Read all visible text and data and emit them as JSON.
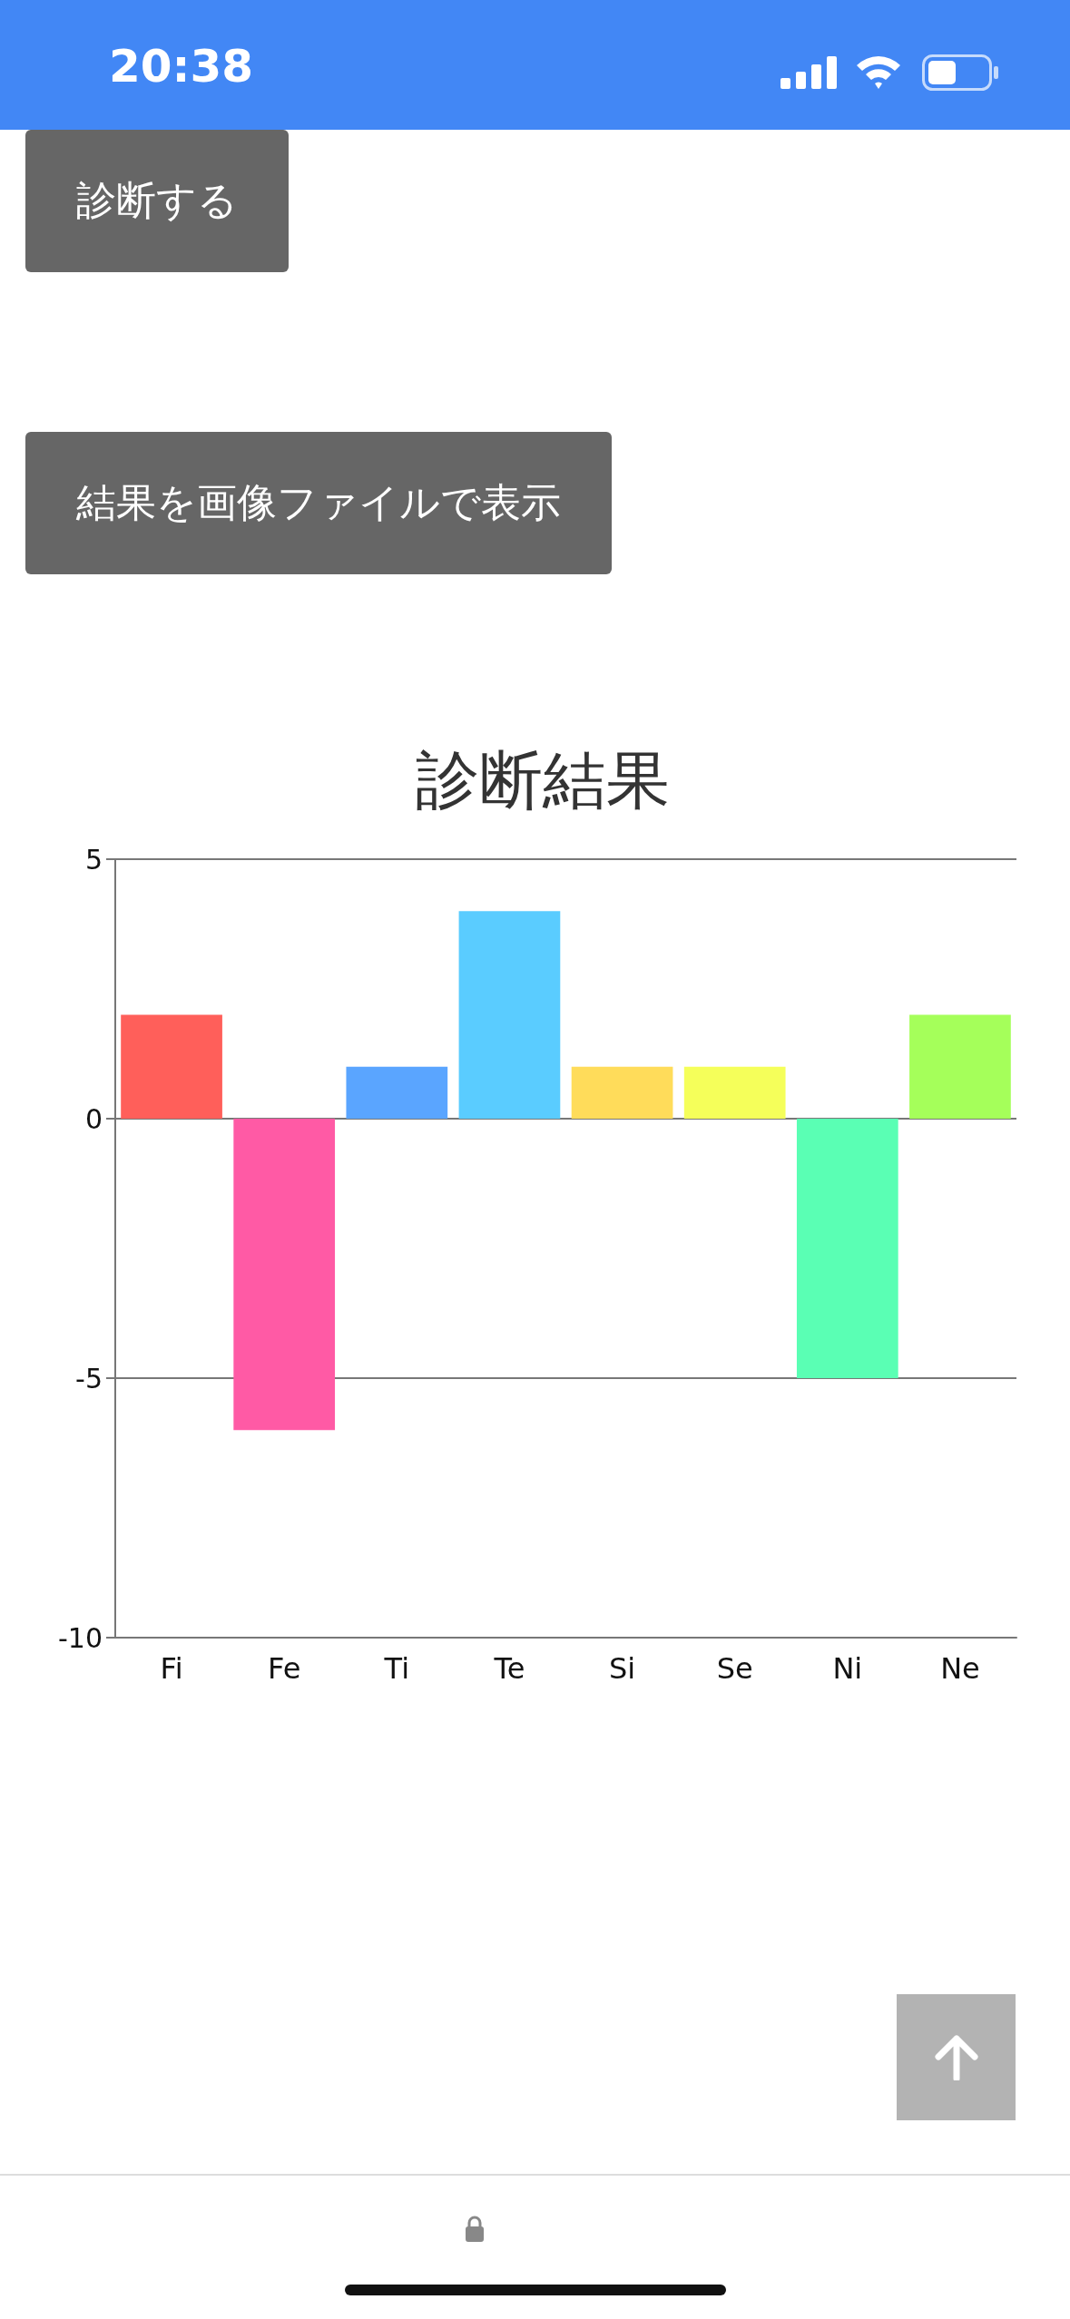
{
  "chart_data": {
    "type": "bar",
    "title": "診断結果",
    "categories": [
      "Fi",
      "Fe",
      "Ti",
      "Te",
      "Si",
      "Se",
      "Ni",
      "Ne"
    ],
    "values": [
      2,
      -6,
      1,
      4,
      1,
      1,
      -5,
      2
    ],
    "colors": [
      "#ff5f5a",
      "#ff5aa5",
      "#5aa5ff",
      "#5accff",
      "#ffdc5a",
      "#f5ff5a",
      "#5affb4",
      "#a5ff5a"
    ],
    "ylim": [
      -10,
      5
    ],
    "yticks": [
      -10,
      -5,
      0,
      5
    ],
    "grid": "y",
    "annotations": [
      "20:38",
      "診断する",
      "結果を画像ファイルで表示"
    ]
  }
}
